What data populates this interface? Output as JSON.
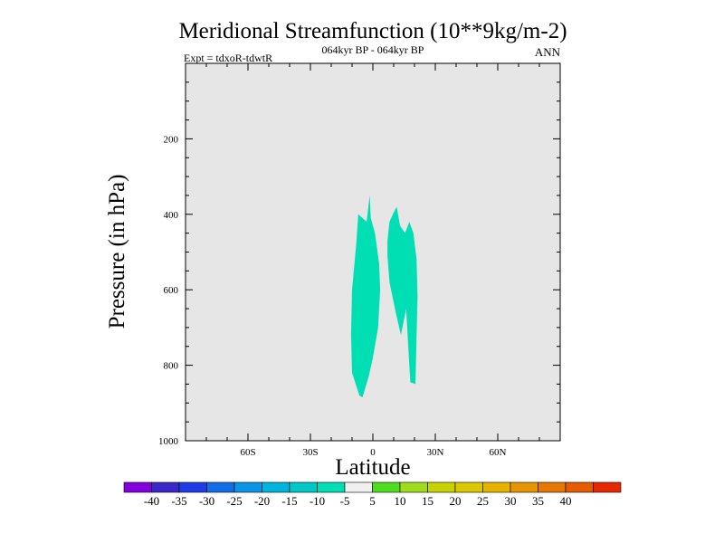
{
  "chart_data": {
    "type": "contour",
    "title": "Meridional Streamfunction (10**9kg/m-2)",
    "subtitle_left": "Expt = tdxoR-tdwtR",
    "subtitle_center": "064kyr BP - 064kyr BP",
    "subtitle_right": "ANN",
    "xlabel": "Latitude",
    "ylabel": "Pressure (in hPa)",
    "xlim": [
      -90,
      90
    ],
    "ylim": [
      0,
      1000
    ],
    "y_inverted": true,
    "x_ticks": [
      {
        "value": -60,
        "label": "60S"
      },
      {
        "value": -30,
        "label": "30S"
      },
      {
        "value": 0,
        "label": "0"
      },
      {
        "value": 30,
        "label": "30N"
      },
      {
        "value": 60,
        "label": "60N"
      }
    ],
    "y_ticks": [
      {
        "value": 200,
        "label": "200"
      },
      {
        "value": 400,
        "label": "400"
      },
      {
        "value": 600,
        "label": "600"
      },
      {
        "value": 800,
        "label": "800"
      },
      {
        "value": 1000,
        "label": "1000"
      }
    ],
    "background_color": "#e6e6e6",
    "regions": [
      {
        "level_range": [
          -10,
          -5
        ],
        "color": "#00dfb4",
        "outline": [
          [
            -6.5,
            880
          ],
          [
            -10,
            820
          ],
          [
            -10.5,
            720
          ],
          [
            -10,
            600
          ],
          [
            -8,
            480
          ],
          [
            -7,
            400
          ],
          [
            -3,
            420
          ],
          [
            -1.5,
            350
          ],
          [
            -1,
            410
          ],
          [
            1,
            450
          ],
          [
            3,
            530
          ],
          [
            3.5,
            600
          ],
          [
            2.5,
            700
          ],
          [
            0,
            780
          ],
          [
            -2,
            830
          ],
          [
            -5,
            885
          ]
        ]
      },
      {
        "level_range": [
          -10,
          -5
        ],
        "color": "#00dfb4",
        "outline": [
          [
            7,
            470
          ],
          [
            8,
            420
          ],
          [
            10,
            395
          ],
          [
            11.5,
            380
          ],
          [
            13,
            430
          ],
          [
            15.5,
            450
          ],
          [
            17.5,
            420
          ],
          [
            19.5,
            450
          ],
          [
            21,
            520
          ],
          [
            21.5,
            620
          ],
          [
            21,
            720
          ],
          [
            20.5,
            850
          ],
          [
            18,
            845
          ],
          [
            17,
            750
          ],
          [
            16,
            650
          ],
          [
            13.5,
            720
          ],
          [
            11,
            660
          ],
          [
            8,
            580
          ],
          [
            7,
            510
          ]
        ]
      }
    ],
    "colorbar": {
      "colors": [
        "#8200dc",
        "#3c28c8",
        "#1e3ce6",
        "#0f6ee6",
        "#0a96e6",
        "#00b4dc",
        "#00c8c8",
        "#00dfb4",
        "#f0f0f0",
        "#50dc1e",
        "#a0dc1e",
        "#c8d200",
        "#dcc800",
        "#e6b400",
        "#e69600",
        "#e67800",
        "#e65a00",
        "#e62800"
      ],
      "labels": [
        "-40",
        "-35",
        "-30",
        "-25",
        "-20",
        "-15",
        "-10",
        "-5",
        "5",
        "10",
        "15",
        "20",
        "25",
        "30",
        "35",
        "40"
      ]
    }
  }
}
